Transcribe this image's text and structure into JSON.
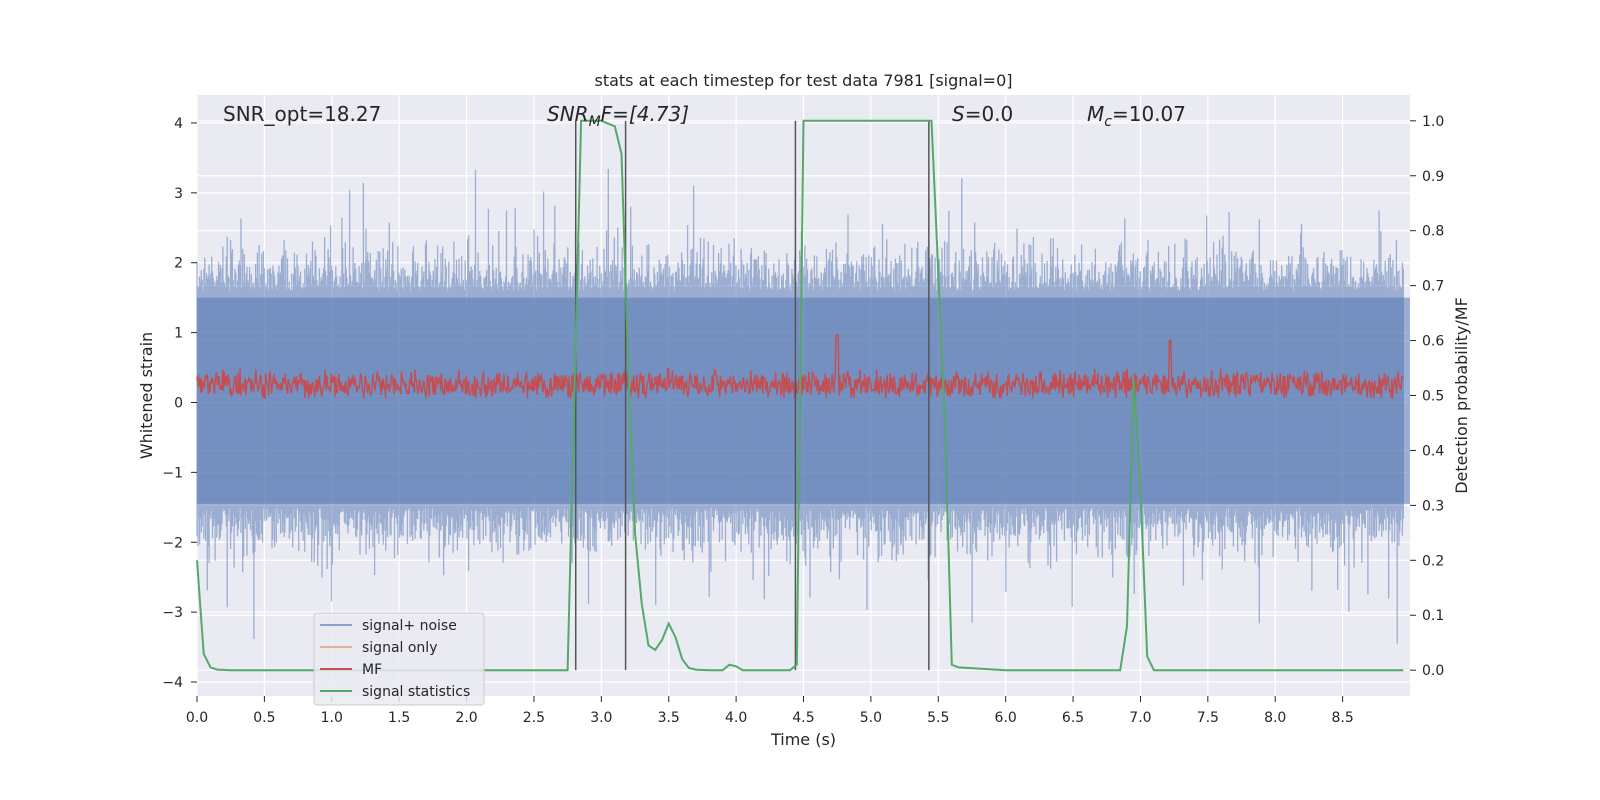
{
  "chart_data": {
    "type": "line",
    "title": "stats at each timestep for test data 7981 [signal=0]",
    "xlabel": "Time (s)",
    "ylabel_left": "Whitened strain",
    "ylabel_right": "Detection probability/MF",
    "xlim": [
      0,
      9.0
    ],
    "ylim_left": [
      -4.2,
      4.4
    ],
    "ylim_right": [
      -0.047,
      1.047
    ],
    "x_ticks": [
      0.0,
      0.5,
      1.0,
      1.5,
      2.0,
      2.5,
      3.0,
      3.5,
      4.0,
      4.5,
      5.0,
      5.5,
      6.0,
      6.5,
      7.0,
      7.5,
      8.0,
      8.5
    ],
    "x_tick_labels": [
      "0.0",
      "0.5",
      "1.0",
      "1.5",
      "2.0",
      "2.5",
      "3.0",
      "3.5",
      "4.0",
      "4.5",
      "5.0",
      "5.5",
      "6.0",
      "6.5",
      "7.0",
      "7.5",
      "8.0",
      "8.5"
    ],
    "y_left_ticks": [
      -4,
      -3,
      -2,
      -1,
      0,
      1,
      2,
      3,
      4
    ],
    "y_left_tick_labels": [
      "−4",
      "−3",
      "−2",
      "−1",
      "0",
      "1",
      "2",
      "3",
      "4"
    ],
    "y_right_ticks": [
      0.0,
      0.1,
      0.2,
      0.3,
      0.4,
      0.5,
      0.6,
      0.7,
      0.8,
      0.9,
      1.0
    ],
    "y_right_tick_labels": [
      "0.0",
      "0.1",
      "0.2",
      "0.3",
      "0.4",
      "0.5",
      "0.6",
      "0.7",
      "0.8",
      "0.9",
      "1.0"
    ],
    "grid": true,
    "annotations": {
      "snr_opt": "SNR_opt=18.27",
      "snr_mf_main": "SNR",
      "snr_mf_sub": "M",
      "snr_mf_rest": "F=[4.73]",
      "s_main": "S",
      "s_rest": "=0.0",
      "mc_main": "M",
      "mc_sub": "c",
      "mc_rest": "=10.07"
    },
    "legend_position": "lower-left",
    "series": [
      {
        "name": "signal+ noise",
        "color": "#4c72b0",
        "opacity": 0.5,
        "axis": "left",
        "amplitude": {
          "band_lower": -1.5,
          "band_upper": 1.6,
          "peak_max": 3.95,
          "peak_min": -3.45
        }
      },
      {
        "name": "signal only",
        "color": "#dd8452",
        "opacity": 0.55,
        "axis": "left",
        "values": []
      },
      {
        "name": "MF",
        "color": "#c44e52",
        "axis": "right",
        "amplitude": {
          "base": 0.52,
          "range": [
            0.495,
            0.6
          ],
          "peaks": [
            [
              4.75,
              0.61
            ],
            [
              7.22,
              0.6
            ]
          ]
        }
      },
      {
        "name": "signal statistics",
        "color": "#55a868",
        "axis": "right",
        "x": [
          0.0,
          0.05,
          0.1,
          0.15,
          0.25,
          0.5,
          1.0,
          2.0,
          2.5,
          2.75,
          2.8,
          2.85,
          3.0,
          3.1,
          3.15,
          3.2,
          3.25,
          3.3,
          3.35,
          3.4,
          3.45,
          3.5,
          3.55,
          3.6,
          3.65,
          3.7,
          3.8,
          3.9,
          3.95,
          4.0,
          4.05,
          4.1,
          4.3,
          4.4,
          4.45,
          4.5,
          4.55,
          5.0,
          5.4,
          5.45,
          5.55,
          5.6,
          5.65,
          6.0,
          6.8,
          6.85,
          6.9,
          6.95,
          7.0,
          7.05,
          7.1,
          7.2,
          7.5,
          8.0,
          8.5,
          8.95
        ],
        "y": [
          0.2,
          0.03,
          0.005,
          0.001,
          0.0,
          0.0,
          0.0,
          0.0,
          0.0,
          0.0,
          0.5,
          1.0,
          1.0,
          0.99,
          0.94,
          0.55,
          0.25,
          0.12,
          0.045,
          0.037,
          0.055,
          0.085,
          0.06,
          0.02,
          0.004,
          0.001,
          0.0,
          0.0,
          0.01,
          0.007,
          0.0,
          0.0,
          0.0,
          0.0,
          0.01,
          1.0,
          1.0,
          1.0,
          1.0,
          1.0,
          0.45,
          0.01,
          0.005,
          0.0,
          0.0,
          0.0,
          0.08,
          0.53,
          0.33,
          0.025,
          0.0,
          0.0,
          0.0,
          0.0,
          0.0,
          0.0
        ]
      }
    ],
    "vertical_lines_x": [
      2.81,
      3.18,
      4.44,
      5.43
    ],
    "vertical_line_range_right": [
      0.0,
      1.0
    ],
    "vertical_line_color": "#555555"
  }
}
